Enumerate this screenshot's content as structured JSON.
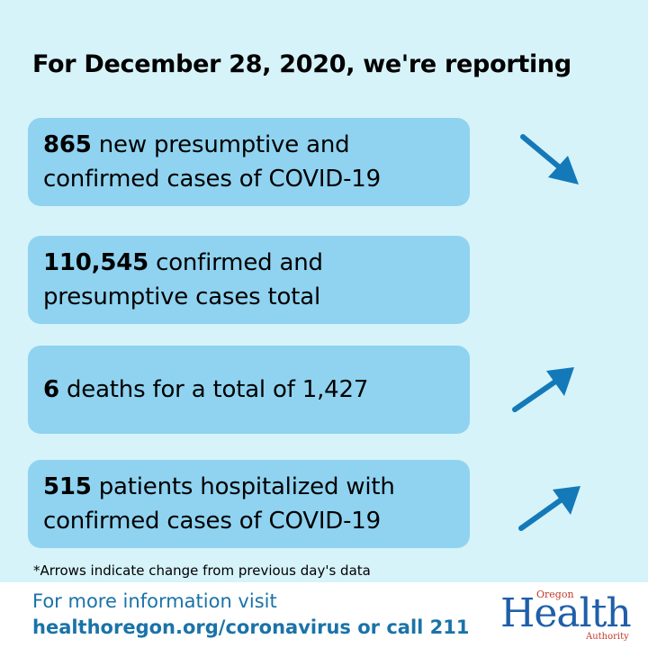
{
  "headline": "For December 28, 2020, we're reporting",
  "cards": [
    {
      "number": "865",
      "text": " new presumptive and confirmed cases of COVID-19",
      "trend": "down"
    },
    {
      "number": "110,545",
      "text": " confirmed and presumptive cases total",
      "trend": "none"
    },
    {
      "number": "6",
      "text": " deaths for a total of 1,427",
      "trend": "up"
    },
    {
      "number": "515",
      "text": " patients hospitalized with confirmed cases of COVID-19",
      "trend": "up"
    }
  ],
  "footnote": "*Arrows indicate change from previous day's data",
  "footer": {
    "line1": "For more information visit",
    "line2": "healthoregon.org/coronavirus or call 211"
  },
  "logo": {
    "oregon": "Oregon",
    "health": "Health",
    "authority": "Authority"
  },
  "colors": {
    "background": "#d6f3fa",
    "card": "#8fd3f0",
    "arrow": "#1479b8",
    "footer_text": "#1a73a8"
  },
  "icons": {
    "down_trend": "arrow-down-right-icon",
    "up_trend": "arrow-up-right-icon"
  }
}
